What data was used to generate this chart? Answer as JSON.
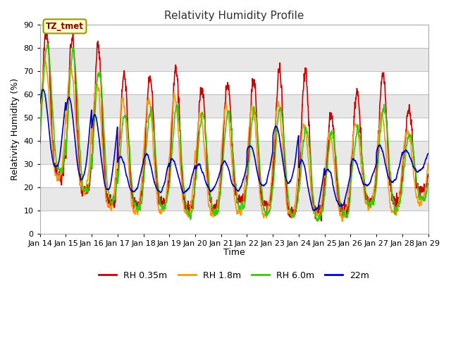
{
  "title": "Relativity Humidity Profile",
  "xlabel": "Time",
  "ylabel": "Relativity Humidity (%)",
  "ylim": [
    0,
    90
  ],
  "yticks": [
    0,
    10,
    20,
    30,
    40,
    50,
    60,
    70,
    80,
    90
  ],
  "x_tick_labels": [
    "Jan 14",
    "Jan 15",
    "Jan 16",
    "Jan 17",
    "Jan 18",
    "Jan 19",
    "Jan 20",
    "Jan 21",
    "Jan 22",
    "Jan 23",
    "Jan 24",
    "Jan 25",
    "Jan 26",
    "Jan 27",
    "Jan 28",
    "Jan 29"
  ],
  "colors": {
    "RH_035m": "#cc0000",
    "RH_18m": "#ff9900",
    "RH_60m": "#33cc00",
    "RH_22m": "#0000cc"
  },
  "legend_labels": [
    "RH 0.35m",
    "RH 1.8m",
    "RH 6.0m",
    "22m"
  ],
  "annotation_text": "TZ_tmet",
  "background_color": "#ffffff",
  "plot_bg_stripes": [
    "#ffffff",
    "#e8e8e8"
  ],
  "stripe_boundaries": [
    0,
    10,
    20,
    30,
    40,
    50,
    60,
    70,
    80,
    90
  ],
  "grid_color": "#cccccc",
  "linewidth": 1.2,
  "num_days": 15,
  "points_per_day": 144
}
